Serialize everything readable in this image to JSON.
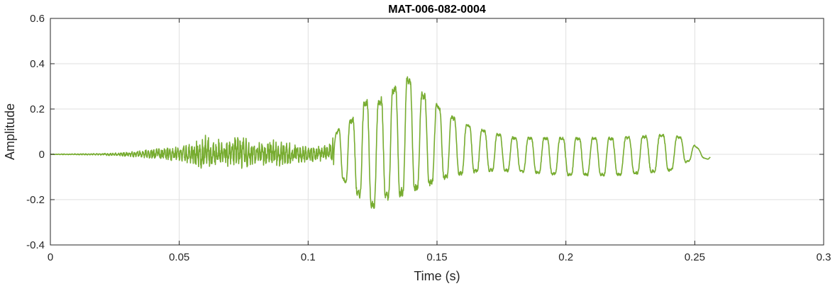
{
  "chart_data": {
    "type": "line",
    "title": "MAT-006-082-0004",
    "xlabel": "Time (s)",
    "ylabel": "Amplitude",
    "xlim": [
      0,
      0.3
    ],
    "ylim": [
      -0.4,
      0.6
    ],
    "xticks": [
      0,
      0.05,
      0.1,
      0.15,
      0.2,
      0.25,
      0.3
    ],
    "xtick_labels": [
      "0",
      "0.05",
      "0.1",
      "0.15",
      "0.2",
      "0.25",
      "0.3"
    ],
    "yticks": [
      -0.4,
      -0.2,
      0,
      0.2,
      0.4,
      0.6
    ],
    "ytick_labels": [
      "-0.4",
      "-0.2",
      "0",
      "0.2",
      "0.4",
      "0.6"
    ],
    "grid": true,
    "line_color": "#77AC30",
    "series": [
      {
        "x_start": 0,
        "x_end": 0.256,
        "envelope": [
          {
            "t": 0.0,
            "max": 0.001,
            "min": -0.001
          },
          {
            "t": 0.02,
            "max": 0.004,
            "min": -0.004
          },
          {
            "t": 0.03,
            "max": 0.01,
            "min": -0.01
          },
          {
            "t": 0.04,
            "max": 0.025,
            "min": -0.02
          },
          {
            "t": 0.05,
            "max": 0.035,
            "min": -0.035
          },
          {
            "t": 0.056,
            "max": 0.06,
            "min": -0.05
          },
          {
            "t": 0.06,
            "max": 0.09,
            "min": -0.08
          },
          {
            "t": 0.067,
            "max": 0.06,
            "min": -0.05
          },
          {
            "t": 0.073,
            "max": 0.09,
            "min": -0.07
          },
          {
            "t": 0.08,
            "max": 0.05,
            "min": -0.04
          },
          {
            "t": 0.086,
            "max": 0.07,
            "min": -0.06
          },
          {
            "t": 0.092,
            "max": 0.055,
            "min": -0.05
          },
          {
            "t": 0.1,
            "max": 0.035,
            "min": -0.035
          },
          {
            "t": 0.108,
            "max": 0.04,
            "min": -0.03
          },
          {
            "t": 0.112,
            "max": 0.15,
            "min": -0.12
          },
          {
            "t": 0.117,
            "max": 0.21,
            "min": -0.22
          },
          {
            "t": 0.122,
            "max": 0.31,
            "min": -0.27
          },
          {
            "t": 0.126,
            "max": 0.3,
            "min": -0.32
          },
          {
            "t": 0.13,
            "max": 0.35,
            "min": -0.27
          },
          {
            "t": 0.134,
            "max": 0.38,
            "min": -0.28
          },
          {
            "t": 0.138,
            "max": 0.44,
            "min": -0.25
          },
          {
            "t": 0.142,
            "max": 0.36,
            "min": -0.23
          },
          {
            "t": 0.147,
            "max": 0.31,
            "min": -0.2
          },
          {
            "t": 0.152,
            "max": 0.25,
            "min": -0.16
          },
          {
            "t": 0.158,
            "max": 0.19,
            "min": -0.13
          },
          {
            "t": 0.165,
            "max": 0.15,
            "min": -0.11
          },
          {
            "t": 0.172,
            "max": 0.12,
            "min": -0.1
          },
          {
            "t": 0.18,
            "max": 0.1,
            "min": -0.1
          },
          {
            "t": 0.2,
            "max": 0.1,
            "min": -0.12
          },
          {
            "t": 0.22,
            "max": 0.1,
            "min": -0.12
          },
          {
            "t": 0.24,
            "max": 0.115,
            "min": -0.1
          },
          {
            "t": 0.247,
            "max": 0.085,
            "min": -0.05
          },
          {
            "t": 0.252,
            "max": 0.025,
            "min": -0.015
          },
          {
            "t": 0.256,
            "max": 0.0,
            "min": -0.03
          }
        ]
      }
    ]
  }
}
